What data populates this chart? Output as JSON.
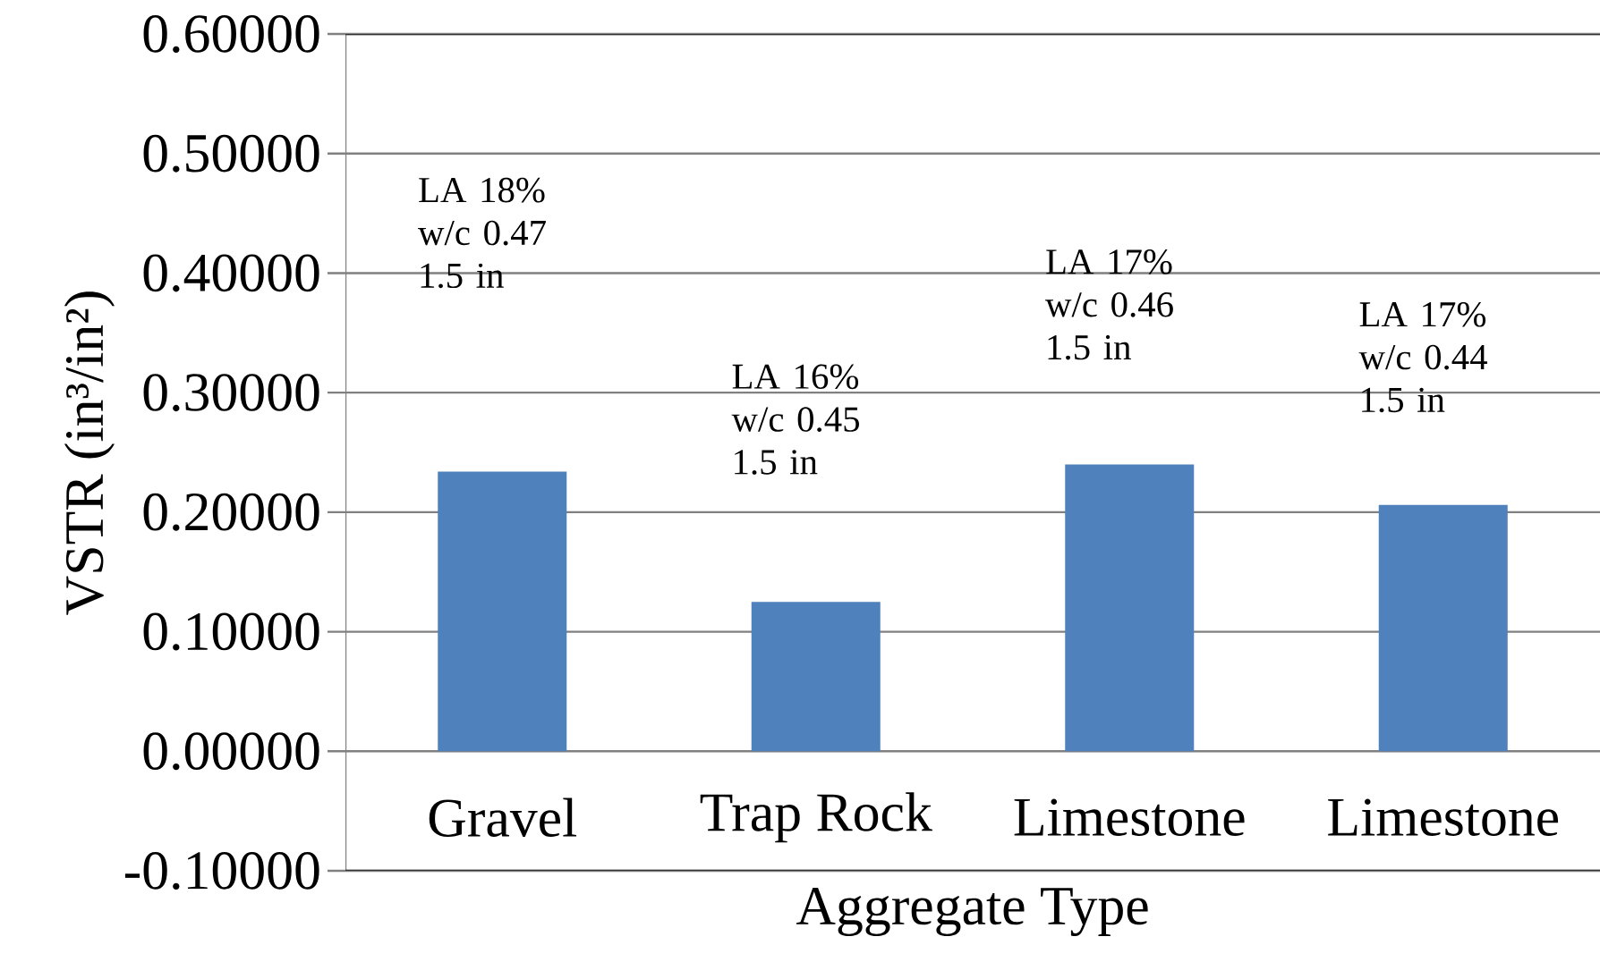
{
  "chart_data": {
    "type": "bar",
    "xlabel": "Aggregate Type",
    "ylabel": "VSTR (in³/in²)",
    "categories": [
      "Gravel",
      "Trap Rock",
      "Limestone",
      "Limestone"
    ],
    "values": [
      0.234,
      0.125,
      0.24,
      0.206
    ],
    "color": "#4f81bd",
    "ylim": [
      -0.1,
      0.6
    ],
    "yticks": [
      {
        "value": -0.1,
        "label": "-0.10000"
      },
      {
        "value": 0,
        "label": "0.00000"
      },
      {
        "value": 0.1,
        "label": "0.10000"
      },
      {
        "value": 0.2,
        "label": "0.20000"
      },
      {
        "value": 0.3,
        "label": "0.30000"
      },
      {
        "value": 0.4,
        "label": "0.40000"
      },
      {
        "value": 0.5,
        "label": "0.50000"
      },
      {
        "value": 0.6,
        "label": "0.60000"
      }
    ],
    "annotations": [
      "LA 18% w/c 0.47 1.5 in",
      "LA 16% w/c 0.45 1.5 in",
      "LA 17% w/c 0.46 1.5 in",
      "LA 17% w/c 0.44 1.5 in"
    ],
    "grid": "y"
  }
}
